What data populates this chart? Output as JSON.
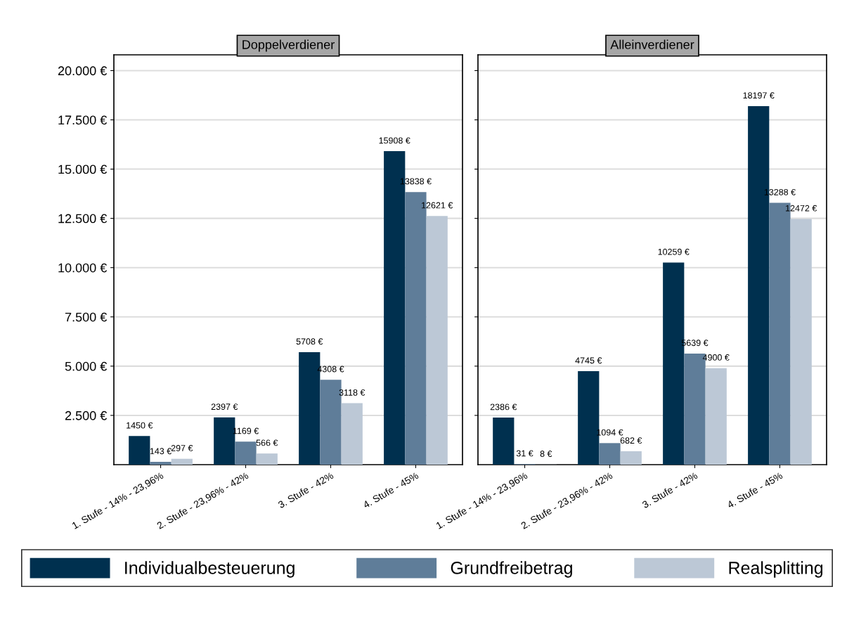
{
  "chart_data": [
    {
      "type": "bar",
      "title": "Doppelverdiener",
      "categories": [
        "1. Stufe - 14% - 23,96%",
        "2. Stufe - 23,96% - 42%",
        "3. Stufe - 42%",
        "4. Stufe - 45%"
      ],
      "series": [
        {
          "name": "Individualbesteuerung",
          "color": "#00304f",
          "values": [
            1450,
            2397,
            5708,
            15908
          ],
          "value_labels": [
            "1450 €",
            "2397 €",
            "5708 €",
            "15908 €"
          ]
        },
        {
          "name": "Grundfreibetrag",
          "color": "#5f7d99",
          "values": [
            143,
            1169,
            4308,
            13838
          ],
          "value_labels": [
            "143 €",
            "1169 €",
            "4308 €",
            "13838 €"
          ]
        },
        {
          "name": "Realsplitting",
          "color": "#bcc8d6",
          "values": [
            297,
            566,
            3118,
            12621
          ],
          "value_labels": [
            "297 €",
            "566 €",
            "3118 €",
            "12621 €"
          ]
        }
      ],
      "ylim": [
        0,
        20800
      ],
      "yticks": [
        {
          "value": 2500,
          "label": "2.500 €"
        },
        {
          "value": 5000,
          "label": "5.000 €"
        },
        {
          "value": 7500,
          "label": "7.500 €"
        },
        {
          "value": 10000,
          "label": "10.000 €"
        },
        {
          "value": 12500,
          "label": "12.500 €"
        },
        {
          "value": 15000,
          "label": "15.000 €"
        },
        {
          "value": 17500,
          "label": "17.500 €"
        },
        {
          "value": 20000,
          "label": "20.000 €"
        }
      ],
      "grid": "y",
      "legend": "bottom"
    },
    {
      "type": "bar",
      "title": "Alleinverdiener",
      "categories": [
        "1. Stufe - 14% - 23,96%",
        "2. Stufe - 23,96% - 42%",
        "3. Stufe - 42%",
        "4. Stufe - 45%"
      ],
      "series": [
        {
          "color": "#00304f",
          "values": [
            2386,
            4745,
            10259,
            18197
          ],
          "value_labels": [
            "2386 €",
            "4745 €",
            "10259 €",
            "18197 €"
          ]
        },
        {
          "color": "#5f7d99",
          "values": [
            31,
            1094,
            5639,
            13288
          ],
          "value_labels": [
            "31 €",
            "1094 €",
            "5639 €",
            "13288 €"
          ]
        },
        {
          "color": "#bcc8d6",
          "values": [
            8,
            682,
            4900,
            12472
          ],
          "value_labels": [
            "8 €",
            "682 €",
            "4900 €",
            "12472 €"
          ]
        }
      ],
      "ylim": [
        0,
        20800
      ],
      "yticks": [
        2500,
        5000,
        7500,
        10000,
        12500,
        15000,
        17500,
        20000
      ],
      "grid": "y",
      "tick_labels": "x"
    }
  ]
}
